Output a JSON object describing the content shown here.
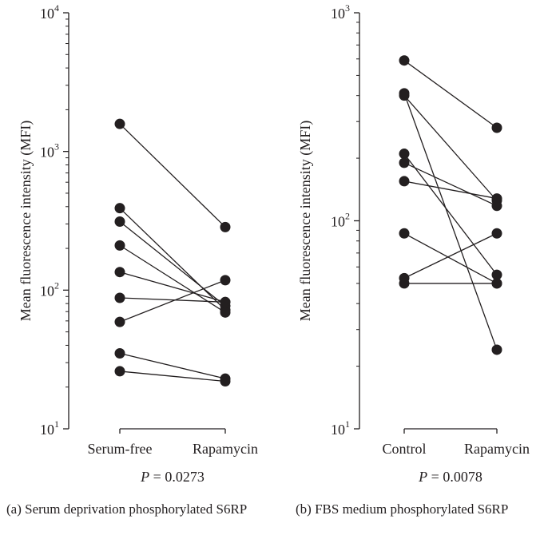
{
  "chart_data": [
    {
      "type": "scatter",
      "subtype": "paired-dot-plot",
      "ylabel": "Mean fluorescence intensity (MFI)",
      "yscale": "log",
      "ylim": [
        10,
        10000
      ],
      "yticks": [
        {
          "value": 10,
          "base": "10",
          "exp": "1"
        },
        {
          "value": 100,
          "base": "10",
          "exp": "2"
        },
        {
          "value": 1000,
          "base": "10",
          "exp": "3"
        },
        {
          "value": 10000,
          "base": "10",
          "exp": "4"
        }
      ],
      "categories": [
        "Serum-free",
        "Rapamycin"
      ],
      "pairs": [
        [
          1580,
          285
        ],
        [
          390,
          72
        ],
        [
          312,
          77
        ],
        [
          210,
          69
        ],
        [
          135,
          82
        ],
        [
          88,
          82
        ],
        [
          59,
          118
        ],
        [
          35,
          23
        ],
        [
          26,
          22
        ]
      ],
      "pvalue_label": "P",
      "pvalue_text": "= 0.0273",
      "caption": "(a)  Serum deprivation phosphorylated S6RP"
    },
    {
      "type": "scatter",
      "subtype": "paired-dot-plot",
      "ylabel": "Mean fluorescence intensity (MFI)",
      "yscale": "log",
      "ylim": [
        10,
        1000
      ],
      "yticks": [
        {
          "value": 10,
          "base": "10",
          "exp": "1"
        },
        {
          "value": 100,
          "base": "10",
          "exp": "2"
        },
        {
          "value": 1000,
          "base": "10",
          "exp": "3"
        }
      ],
      "categories": [
        "Control",
        "Rapamycin"
      ],
      "pairs": [
        [
          590,
          280
        ],
        [
          410,
          24
        ],
        [
          400,
          125
        ],
        [
          210,
          55
        ],
        [
          190,
          118
        ],
        [
          155,
          128
        ],
        [
          87,
          50
        ],
        [
          53,
          87
        ],
        [
          50,
          50
        ]
      ],
      "pvalue_label": "P",
      "pvalue_text": "= 0.0078",
      "caption": "(b)  FBS  medium  phosphorylated S6RP"
    }
  ]
}
